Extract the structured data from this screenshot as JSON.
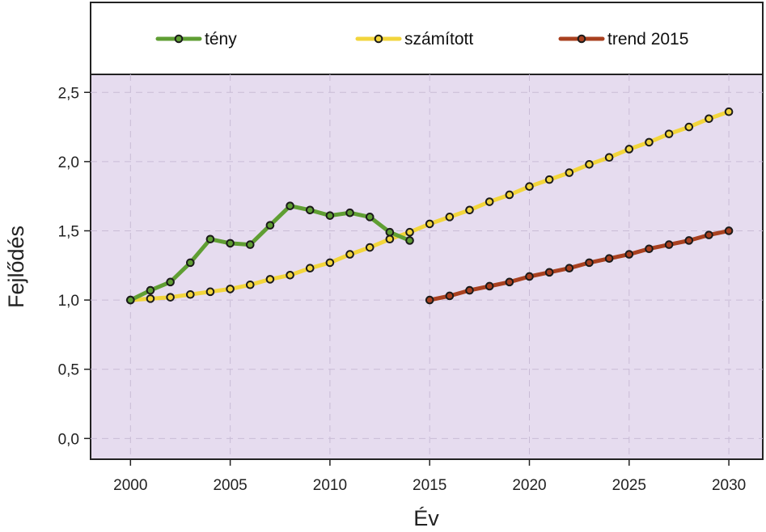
{
  "chart_data": {
    "type": "line",
    "xlabel": "Év",
    "ylabel": "Fejlődés",
    "xlim": [
      1998,
      2031.7
    ],
    "ylim": [
      -0.15,
      2.63
    ],
    "x_ticks": [
      2000,
      2005,
      2010,
      2015,
      2020,
      2025,
      2030
    ],
    "y_ticks": [
      0.0,
      0.5,
      1.0,
      1.5,
      2.0,
      2.5
    ],
    "y_tick_labels": [
      "0,0",
      "0,5",
      "1,0",
      "1,5",
      "2,0",
      "2,5"
    ],
    "grid": true,
    "legend_position": "top",
    "colors": {
      "plot_background": "#e6dcef",
      "grid": "#c9bcd6",
      "frame": "#222222"
    },
    "series": [
      {
        "name": "tény",
        "color": "#5f9e33",
        "marker_fill": "#5f9e33",
        "x": [
          2000,
          2001,
          2002,
          2003,
          2004,
          2005,
          2006,
          2007,
          2008,
          2009,
          2010,
          2011,
          2012,
          2013,
          2014
        ],
        "y": [
          1.0,
          1.07,
          1.13,
          1.27,
          1.44,
          1.41,
          1.4,
          1.54,
          1.68,
          1.65,
          1.61,
          1.63,
          1.6,
          1.49,
          1.43
        ]
      },
      {
        "name": "számított",
        "color": "#f2d53c",
        "marker_fill": "#f2d53c",
        "x": [
          2000,
          2001,
          2002,
          2003,
          2004,
          2005,
          2006,
          2007,
          2008,
          2009,
          2010,
          2011,
          2012,
          2013,
          2014,
          2015,
          2016,
          2017,
          2018,
          2019,
          2020,
          2021,
          2022,
          2023,
          2024,
          2025,
          2026,
          2027,
          2028,
          2029,
          2030
        ],
        "y": [
          1.0,
          1.01,
          1.02,
          1.04,
          1.06,
          1.08,
          1.11,
          1.15,
          1.18,
          1.23,
          1.27,
          1.33,
          1.38,
          1.44,
          1.49,
          1.55,
          1.6,
          1.65,
          1.71,
          1.76,
          1.82,
          1.87,
          1.92,
          1.98,
          2.03,
          2.09,
          2.14,
          2.2,
          2.25,
          2.31,
          2.36
        ]
      },
      {
        "name": "trend 2015",
        "color": "#a8401f",
        "marker_fill": "#a8401f",
        "x": [
          2015,
          2016,
          2017,
          2018,
          2019,
          2020,
          2021,
          2022,
          2023,
          2024,
          2025,
          2026,
          2027,
          2028,
          2029,
          2030
        ],
        "y": [
          1.0,
          1.03,
          1.07,
          1.1,
          1.13,
          1.17,
          1.2,
          1.23,
          1.27,
          1.3,
          1.33,
          1.37,
          1.4,
          1.43,
          1.47,
          1.5
        ]
      }
    ]
  }
}
